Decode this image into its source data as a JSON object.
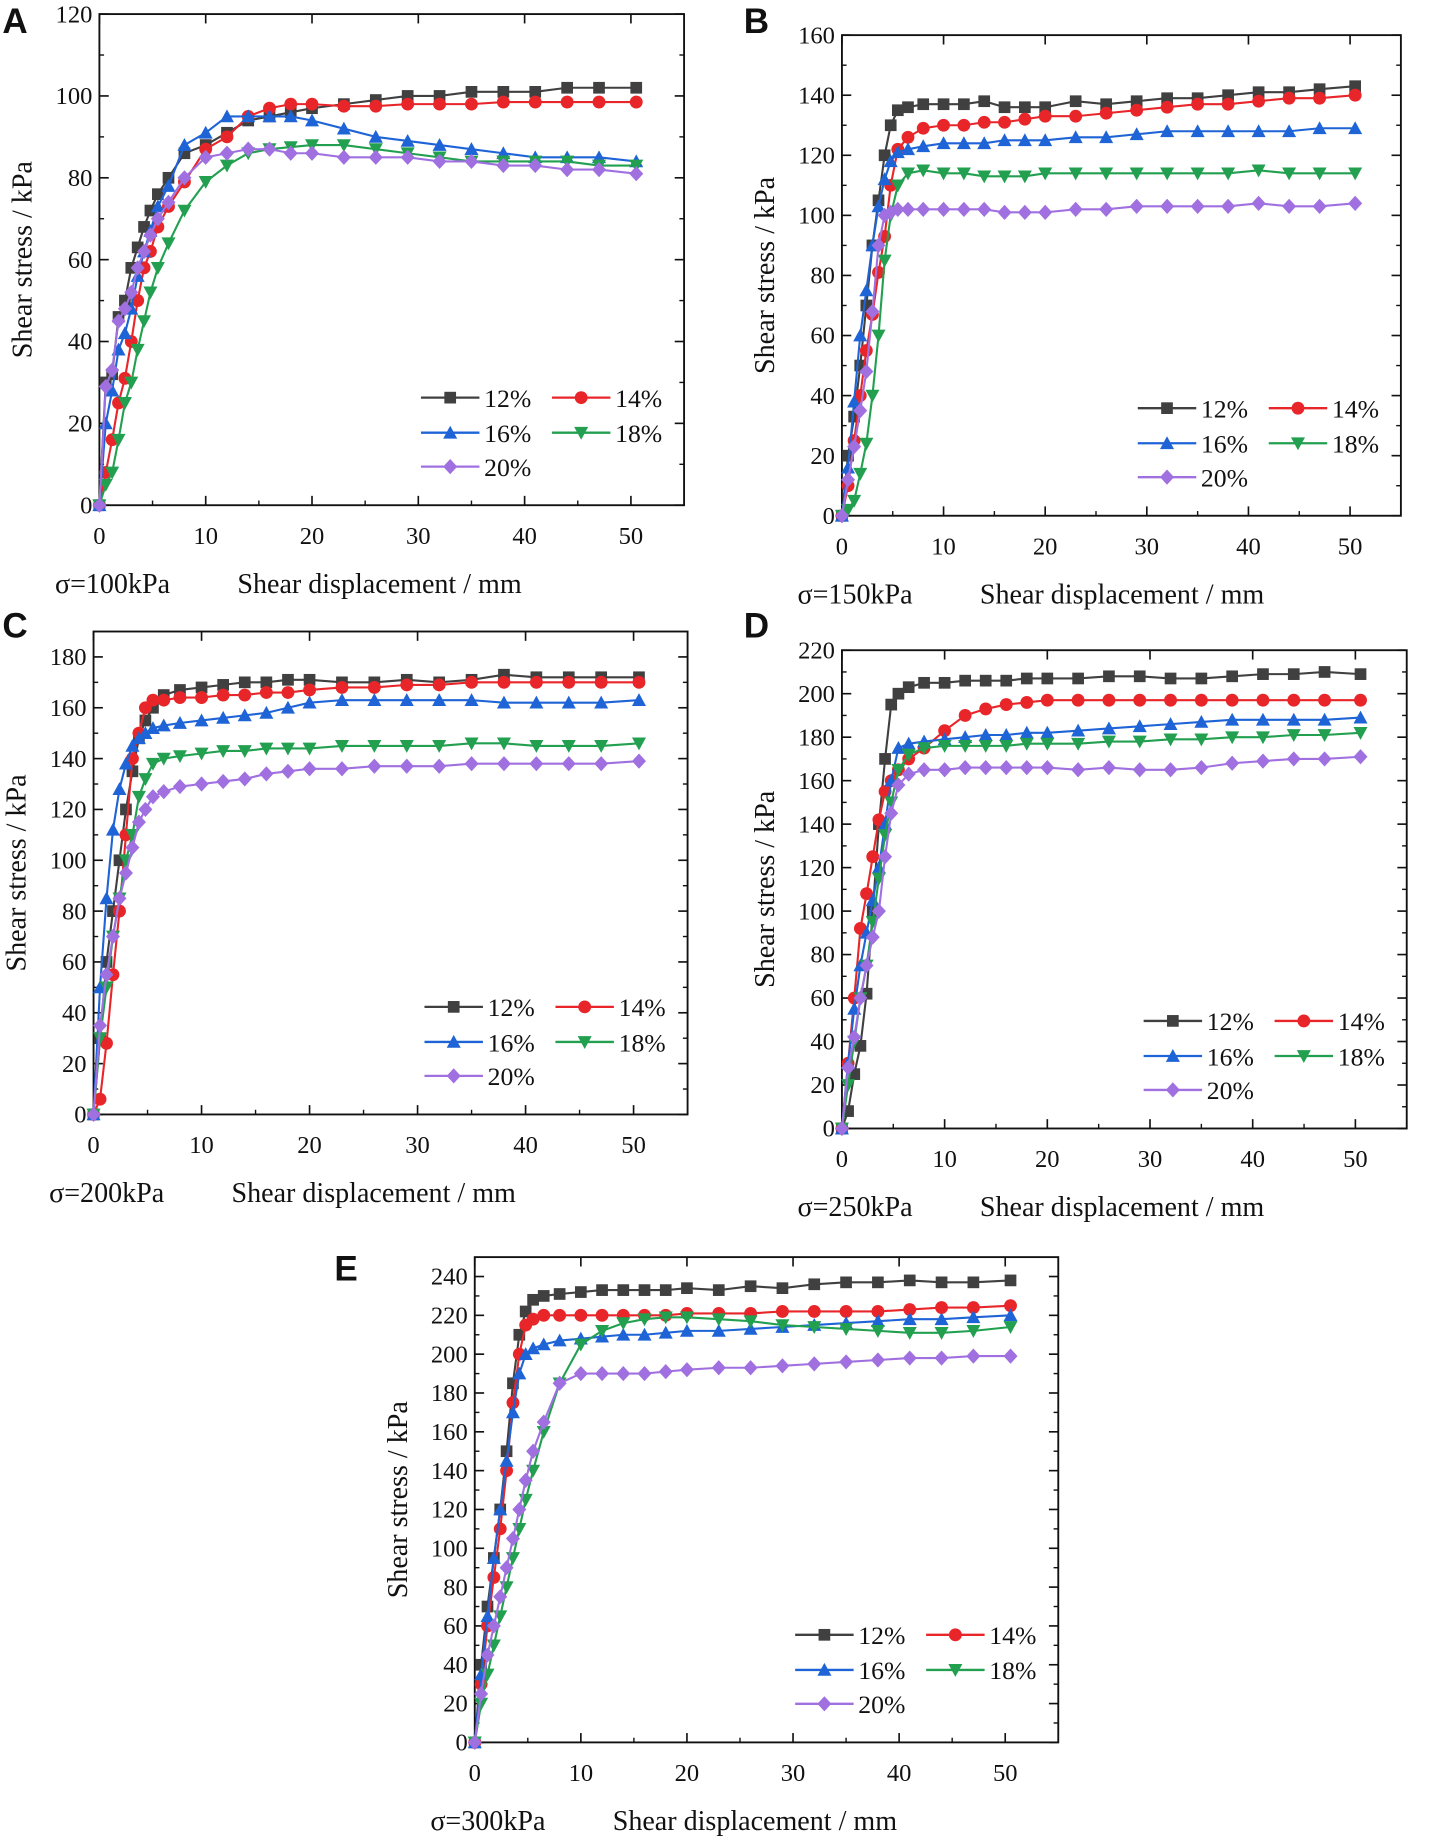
{
  "chart_data": {
    "type": "line",
    "shared_x": [
      0,
      0.6,
      1.2,
      1.8,
      2.4,
      3,
      3.6,
      4.2,
      4.8,
      5.5,
      6.5,
      8,
      10,
      12,
      14,
      16,
      18,
      20,
      23,
      26,
      29,
      32,
      35,
      38,
      41,
      44,
      47,
      50.5
    ],
    "legend_labels": [
      "12%",
      "14%",
      "16%",
      "18%",
      "20%"
    ],
    "series_colors": [
      "#404040",
      "#e8262a",
      "#1f64d6",
      "#22a050",
      "#a070e0"
    ],
    "series_markers": [
      "square",
      "circle",
      "triangle-up",
      "triangle-down",
      "diamond"
    ],
    "panels": [
      {
        "letter": "A",
        "condition": "σ=100kPa",
        "xlabel": "Shear displacement / mm",
        "ylabel": "Shear stress / kPa",
        "xlim": [
          0,
          55
        ],
        "xticks": [
          0,
          10,
          20,
          30,
          40,
          50
        ],
        "ylim": [
          0,
          120
        ],
        "yticks": [
          0,
          20,
          40,
          60,
          80,
          100,
          120
        ],
        "series": [
          {
            "name": "12%",
            "values": [
              0,
              30,
              32,
              46,
              50,
              58,
              63,
              68,
              72,
              76,
              80,
              86,
              88,
              91,
              94,
              95,
              96,
              97,
              98,
              99,
              100,
              100,
              101,
              101,
              101,
              102,
              102,
              102
            ]
          },
          {
            "name": "14%",
            "values": [
              0,
              8,
              16,
              25,
              31,
              40,
              50,
              58,
              62,
              68,
              73,
              79,
              87,
              90,
              95,
              97,
              98,
              98,
              97.5,
              97.5,
              98,
              98,
              98,
              98.5,
              98.5,
              98.5,
              98.5,
              98.5
            ]
          },
          {
            "name": "16%",
            "values": [
              0,
              20,
              28,
              38,
              42,
              48,
              56,
              62,
              67,
              73,
              78,
              88,
              91,
              95,
              95,
              95,
              95,
              94,
              92,
              90,
              89,
              88,
              87,
              86,
              85,
              85,
              85,
              84
            ]
          },
          {
            "name": "18%",
            "values": [
              0,
              5,
              8,
              16,
              25,
              30,
              38,
              45,
              52,
              58,
              64,
              72,
              79,
              83,
              86,
              87,
              87.5,
              88,
              88,
              87,
              86,
              85,
              84,
              84,
              84,
              84,
              83,
              83
            ]
          },
          {
            "name": "20%",
            "values": [
              0,
              29,
              33,
              45,
              48,
              52,
              58,
              62,
              66,
              70,
              74,
              80,
              85,
              86,
              87,
              87,
              86,
              86,
              85,
              85,
              85,
              84,
              84,
              83,
              83,
              82,
              82,
              81
            ]
          }
        ]
      },
      {
        "letter": "B",
        "condition": "σ=150kPa",
        "xlabel": "Shear displacement / mm",
        "ylabel": "Shear stress / kPa",
        "xlim": [
          0,
          55
        ],
        "xticks": [
          0,
          10,
          20,
          30,
          40,
          50
        ],
        "ylim": [
          0,
          160
        ],
        "yticks": [
          0,
          20,
          40,
          60,
          80,
          100,
          120,
          140,
          160
        ],
        "series": [
          {
            "name": "12%",
            "values": [
              0,
              20,
              33,
              50,
              70,
              90,
              105,
              120,
              130,
              135,
              136,
              137,
              137,
              137,
              138,
              136,
              136,
              136,
              138,
              137,
              138,
              139,
              139,
              140,
              141,
              141,
              142,
              143
            ]
          },
          {
            "name": "14%",
            "values": [
              0,
              10,
              25,
              40,
              55,
              67,
              81,
              93,
              110,
              122,
              126,
              129,
              130,
              130,
              131,
              131,
              132,
              133,
              133,
              134,
              135,
              136,
              137,
              137,
              138,
              139,
              139,
              140
            ]
          },
          {
            "name": "16%",
            "values": [
              0,
              16,
              38,
              60,
              75,
              90,
              103,
              112,
              118,
              121,
              122,
              123,
              124,
              124,
              124,
              125,
              125,
              125,
              126,
              126,
              127,
              128,
              128,
              128,
              128,
              128,
              129,
              129
            ]
          },
          {
            "name": "18%",
            "values": [
              0,
              2,
              5,
              14,
              24,
              40,
              60,
              85,
              100,
              110,
              114,
              115,
              114,
              114,
              113,
              113,
              113,
              114,
              114,
              114,
              114,
              114,
              114,
              114,
              115,
              114,
              114,
              114
            ]
          },
          {
            "name": "20%",
            "values": [
              0,
              12,
              23,
              35,
              48,
              68,
              90,
              100,
              101,
              102,
              102,
              102,
              102,
              102,
              102,
              101,
              101,
              101,
              102,
              102,
              103,
              103,
              103,
              103,
              104,
              103,
              103,
              104
            ]
          }
        ]
      },
      {
        "letter": "C",
        "condition": "σ=200kPa",
        "xlabel": "Shear displacement / mm",
        "ylabel": "Shear stress / kPa",
        "xlim": [
          0,
          55
        ],
        "xticks": [
          0,
          10,
          20,
          30,
          40,
          50
        ],
        "ylim": [
          0,
          190
        ],
        "yticks": [
          0,
          20,
          40,
          60,
          80,
          100,
          120,
          140,
          160,
          180
        ],
        "series": [
          {
            "name": "12%",
            "values": [
              0,
              30,
              60,
              80,
              100,
              120,
              135,
              148,
              155,
              160,
              165,
              167,
              168,
              169,
              170,
              170,
              171,
              171,
              170,
              170,
              171,
              170,
              171,
              173,
              172,
              172,
              172,
              172
            ]
          },
          {
            "name": "14%",
            "values": [
              0,
              6,
              28,
              55,
              80,
              110,
              140,
              150,
              160,
              163,
              163,
              164,
              164,
              165,
              165,
              166,
              166,
              167,
              168,
              168,
              169,
              169,
              170,
              170,
              170,
              170,
              170,
              170
            ]
          },
          {
            "name": "16%",
            "values": [
              0,
              50,
              85,
              112,
              128,
              138,
              145,
              148,
              150,
              152,
              153,
              154,
              155,
              156,
              157,
              158,
              160,
              162,
              163,
              163,
              163,
              163,
              163,
              162,
              162,
              162,
              162,
              163
            ]
          },
          {
            "name": "18%",
            "values": [
              0,
              30,
              50,
              70,
              85,
              100,
              110,
              125,
              132,
              138,
              140,
              141,
              142,
              143,
              143,
              144,
              144,
              144,
              145,
              145,
              145,
              145,
              146,
              146,
              145,
              145,
              145,
              146
            ]
          },
          {
            "name": "20%",
            "values": [
              0,
              35,
              55,
              70,
              85,
              95,
              105,
              115,
              120,
              125,
              127,
              129,
              130,
              131,
              132,
              134,
              135,
              136,
              136,
              137,
              137,
              137,
              138,
              138,
              138,
              138,
              138,
              139
            ]
          }
        ]
      },
      {
        "letter": "D",
        "condition": "σ=250kPa",
        "xlabel": "Shear displacement / mm",
        "ylabel": "Shear stress / kPa",
        "xlim": [
          0,
          55
        ],
        "xticks": [
          0,
          10,
          20,
          30,
          40,
          50
        ],
        "ylim": [
          0,
          220
        ],
        "yticks": [
          0,
          20,
          40,
          60,
          80,
          100,
          120,
          140,
          160,
          180,
          200,
          220
        ],
        "series": [
          {
            "name": "12%",
            "values": [
              0,
              8,
              25,
              38,
              62,
              100,
              140,
              170,
              195,
              200,
              203,
              205,
              205,
              206,
              206,
              206,
              207,
              207,
              207,
              208,
              208,
              207,
              207,
              208,
              209,
              209,
              210,
              209
            ]
          },
          {
            "name": "14%",
            "values": [
              0,
              30,
              60,
              92,
              108,
              125,
              142,
              155,
              160,
              165,
              170,
              175,
              183,
              190,
              193,
              195,
              196,
              197,
              197,
              197,
              197,
              197,
              197,
              197,
              197,
              197,
              197,
              197
            ]
          },
          {
            "name": "16%",
            "values": [
              0,
              30,
              55,
              75,
              90,
              105,
              120,
              140,
              160,
              175,
              177,
              178,
              179,
              180,
              181,
              181,
              182,
              182,
              183,
              184,
              185,
              186,
              187,
              188,
              188,
              188,
              188,
              189
            ]
          },
          {
            "name": "18%",
            "values": [
              0,
              20,
              40,
              60,
              75,
              95,
              115,
              135,
              150,
              165,
              172,
              175,
              176,
              176,
              176,
              176,
              177,
              177,
              177,
              178,
              178,
              179,
              179,
              180,
              180,
              181,
              181,
              182
            ]
          },
          {
            "name": "20%",
            "values": [
              0,
              28,
              42,
              60,
              75,
              88,
              100,
              125,
              145,
              158,
              163,
              165,
              165,
              166,
              166,
              166,
              166,
              166,
              165,
              166,
              165,
              165,
              166,
              168,
              169,
              170,
              170,
              171
            ]
          }
        ]
      },
      {
        "letter": "E",
        "condition": "σ=300kPa",
        "xlabel": "Shear displacement / mm",
        "ylabel": "Shear stress / kPa",
        "xlim": [
          0,
          55
        ],
        "xticks": [
          0,
          10,
          20,
          30,
          40,
          50
        ],
        "ylim": [
          0,
          250
        ],
        "yticks": [
          0,
          20,
          40,
          60,
          80,
          100,
          120,
          140,
          160,
          180,
          200,
          220,
          240
        ],
        "series": [
          {
            "name": "12%",
            "values": [
              0,
              40,
              70,
              95,
              120,
              150,
              185,
              210,
              222,
              228,
              230,
              231,
              232,
              233,
              233,
              233,
              233,
              234,
              233,
              235,
              234,
              236,
              237,
              237,
              238,
              237,
              237,
              238
            ]
          },
          {
            "name": "14%",
            "values": [
              0,
              30,
              60,
              85,
              110,
              140,
              175,
              200,
              215,
              218,
              220,
              220,
              220,
              220,
              220,
              220,
              220,
              221,
              221,
              221,
              222,
              222,
              222,
              222,
              223,
              224,
              224,
              225
            ]
          },
          {
            "name": "16%",
            "values": [
              0,
              35,
              65,
              95,
              120,
              145,
              170,
              190,
              200,
              203,
              205,
              207,
              208,
              209,
              210,
              210,
              211,
              212,
              212,
              213,
              214,
              215,
              216,
              217,
              218,
              218,
              219,
              220
            ]
          },
          {
            "name": "18%",
            "values": [
              0,
              20,
              35,
              50,
              65,
              80,
              95,
              110,
              125,
              140,
              160,
              185,
              205,
              212,
              216,
              218,
              219,
              219,
              218,
              217,
              215,
              214,
              213,
              212,
              211,
              211,
              212,
              214
            ]
          },
          {
            "name": "20%",
            "values": [
              0,
              25,
              45,
              60,
              75,
              90,
              105,
              120,
              135,
              150,
              165,
              185,
              190,
              190,
              190,
              190,
              191,
              192,
              193,
              193,
              194,
              195,
              196,
              197,
              198,
              198,
              199,
              199
            ]
          }
        ]
      }
    ]
  }
}
